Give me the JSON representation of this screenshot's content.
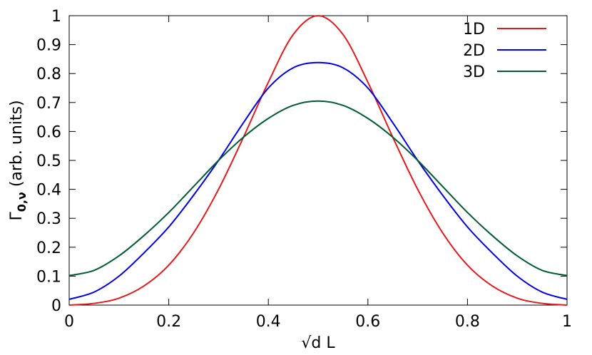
{
  "chart_data": {
    "type": "line",
    "xlabel": "√d L",
    "ylabel": "Γ0,ν (arb. units)",
    "ylabel_parts": {
      "gamma": "Γ",
      "subscript": "0,ν",
      "suffix": " (arb. units)"
    },
    "xlim": [
      0,
      1
    ],
    "ylim": [
      0,
      1
    ],
    "xticks": [
      0,
      0.2,
      0.4,
      0.6,
      0.8,
      1
    ],
    "xtick_labels": [
      "0",
      "0.2",
      "0.4",
      "0.6",
      "0.8",
      "1"
    ],
    "yticks": [
      0,
      0.1,
      0.2,
      0.3,
      0.4,
      0.5,
      0.6,
      0.7,
      0.8,
      0.9,
      1
    ],
    "ytick_labels": [
      "0",
      "0.1",
      "0.2",
      "0.3",
      "0.4",
      "0.5",
      "0.6",
      "0.7",
      "0.8",
      "0.9",
      "1"
    ],
    "grid": false,
    "legend_position": "top-right",
    "x": [
      0,
      0.05,
      0.1,
      0.15,
      0.2,
      0.25,
      0.3,
      0.35,
      0.4,
      0.45,
      0.5,
      0.55,
      0.6,
      0.65,
      0.7,
      0.75,
      0.8,
      0.85,
      0.9,
      0.95,
      1
    ],
    "series": [
      {
        "name": "1D",
        "color": "#e41a1c",
        "values": [
          0.0,
          0.006,
          0.024,
          0.066,
          0.138,
          0.25,
          0.4,
          0.58,
          0.77,
          0.935,
          1.0,
          0.935,
          0.77,
          0.58,
          0.4,
          0.25,
          0.138,
          0.066,
          0.024,
          0.006,
          0.0
        ]
      },
      {
        "name": "2D",
        "color": "#0000e6",
        "values": [
          0.02,
          0.045,
          0.1,
          0.18,
          0.27,
          0.38,
          0.5,
          0.63,
          0.75,
          0.82,
          0.838,
          0.82,
          0.75,
          0.63,
          0.5,
          0.38,
          0.27,
          0.18,
          0.1,
          0.045,
          0.02
        ]
      },
      {
        "name": "3D",
        "color": "#005a32",
        "values": [
          0.102,
          0.12,
          0.17,
          0.24,
          0.32,
          0.41,
          0.5,
          0.58,
          0.645,
          0.69,
          0.705,
          0.69,
          0.645,
          0.58,
          0.5,
          0.41,
          0.32,
          0.24,
          0.17,
          0.12,
          0.102
        ]
      }
    ]
  }
}
